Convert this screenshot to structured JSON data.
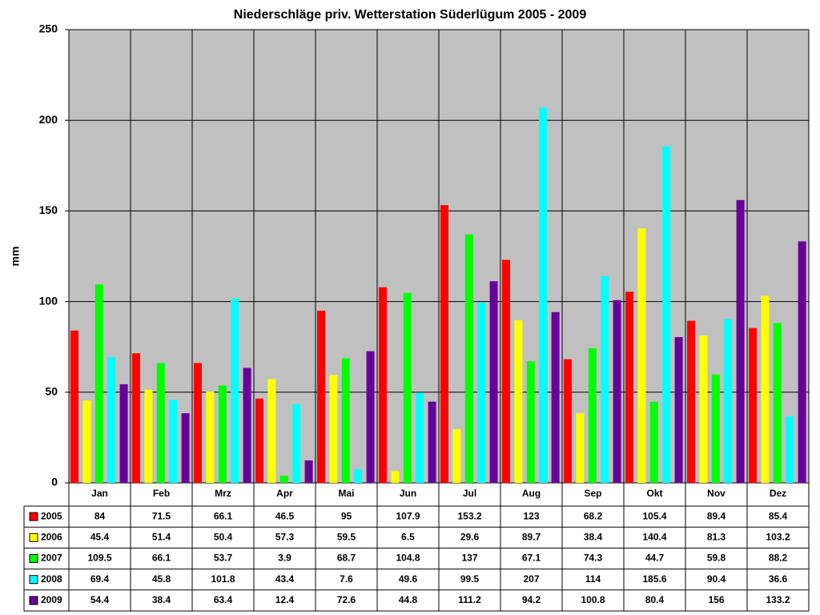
{
  "chart_data": {
    "type": "bar",
    "title": "Niederschläge priv. Wetterstation Süderlügum 2005 - 2009",
    "y_label": "mm",
    "categories": [
      "Jan",
      "Feb",
      "Mrz",
      "Apr",
      "Mai",
      "Jun",
      "Jul",
      "Aug",
      "Sep",
      "Okt",
      "Nov",
      "Dez"
    ],
    "series": [
      {
        "name": "2005",
        "color": "#ff0000",
        "values": [
          84,
          71.5,
          66.1,
          46.5,
          95,
          107.9,
          153.2,
          123,
          68.2,
          105.4,
          89.4,
          85.4
        ]
      },
      {
        "name": "2006",
        "color": "#ffff00",
        "values": [
          45.4,
          51.4,
          50.4,
          57.3,
          59.5,
          6.5,
          29.6,
          89.7,
          38.4,
          140.4,
          81.3,
          103.2
        ]
      },
      {
        "name": "2007",
        "color": "#00ff00",
        "values": [
          109.5,
          66.1,
          53.7,
          3.9,
          68.7,
          104.8,
          137,
          67.1,
          74.3,
          44.7,
          59.8,
          88.2
        ]
      },
      {
        "name": "2008",
        "color": "#00ffff",
        "values": [
          69.4,
          45.8,
          101.8,
          43.4,
          7.6,
          49.6,
          99.5,
          207,
          114,
          185.6,
          90.4,
          36.6
        ]
      },
      {
        "name": "2009",
        "color": "#660099",
        "values": [
          54.4,
          38.4,
          63.4,
          12.4,
          72.6,
          44.8,
          111.2,
          94.2,
          100.8,
          80.4,
          156,
          133.2
        ]
      }
    ],
    "ylim": [
      0,
      250
    ],
    "yticks": [
      0,
      50,
      100,
      150,
      200,
      250
    ],
    "grid": true,
    "background": "#c0c0c0"
  }
}
